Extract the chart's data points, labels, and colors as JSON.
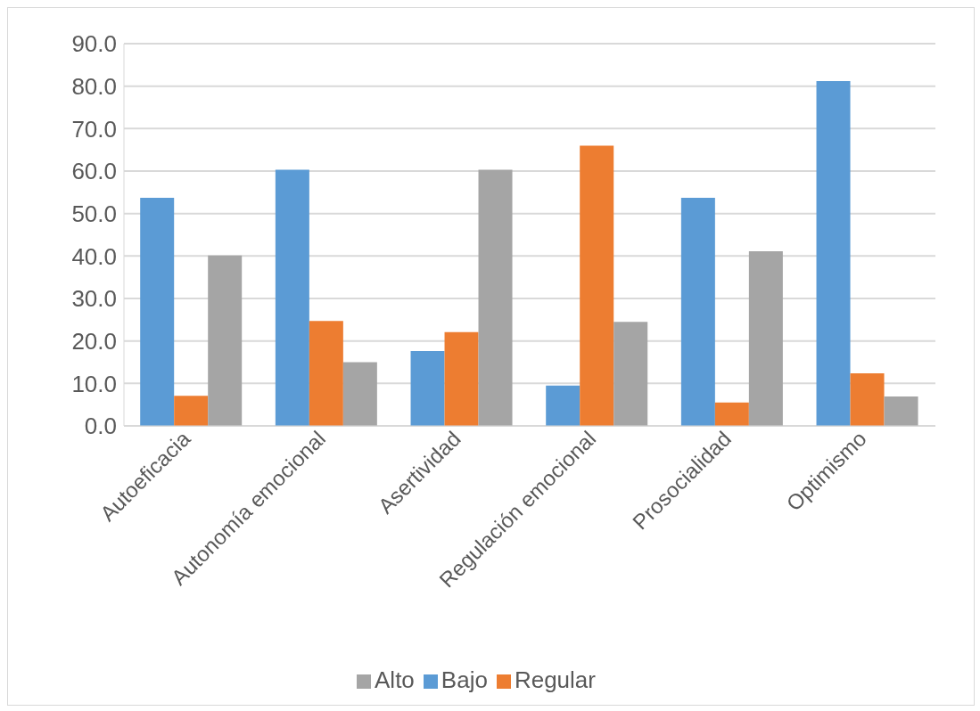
{
  "chart_data": {
    "type": "bar",
    "categories": [
      "Autoeficacia",
      "Autonomía emocional",
      "Asertividad",
      "Regulación emocional",
      "Prosocialidad",
      "Optimismo"
    ],
    "series": [
      {
        "name": "Bajo",
        "color": "#5b9bd5",
        "values": [
          53.7,
          60.3,
          17.6,
          9.5,
          53.7,
          81.2
        ]
      },
      {
        "name": "Regular",
        "color": "#ed7d31",
        "values": [
          7.1,
          24.7,
          22.1,
          66.0,
          5.5,
          12.4
        ]
      },
      {
        "name": "Alto",
        "color": "#a5a5a5",
        "values": [
          40.1,
          15.0,
          60.3,
          24.5,
          41.1,
          6.9
        ]
      }
    ],
    "ylim": [
      0,
      90
    ],
    "yticks": [
      {
        "value": 0,
        "label": "0.0"
      },
      {
        "value": 10,
        "label": "10.0"
      },
      {
        "value": 20,
        "label": "20.0"
      },
      {
        "value": 30,
        "label": "30.0"
      },
      {
        "value": 40,
        "label": "40.0"
      },
      {
        "value": 50,
        "label": "50.0"
      },
      {
        "value": 60,
        "label": "60.0"
      },
      {
        "value": 70,
        "label": "70.0"
      },
      {
        "value": 80,
        "label": "80.0"
      },
      {
        "value": 90,
        "label": "90.0"
      }
    ],
    "grid": "y",
    "legend": "bottom"
  }
}
